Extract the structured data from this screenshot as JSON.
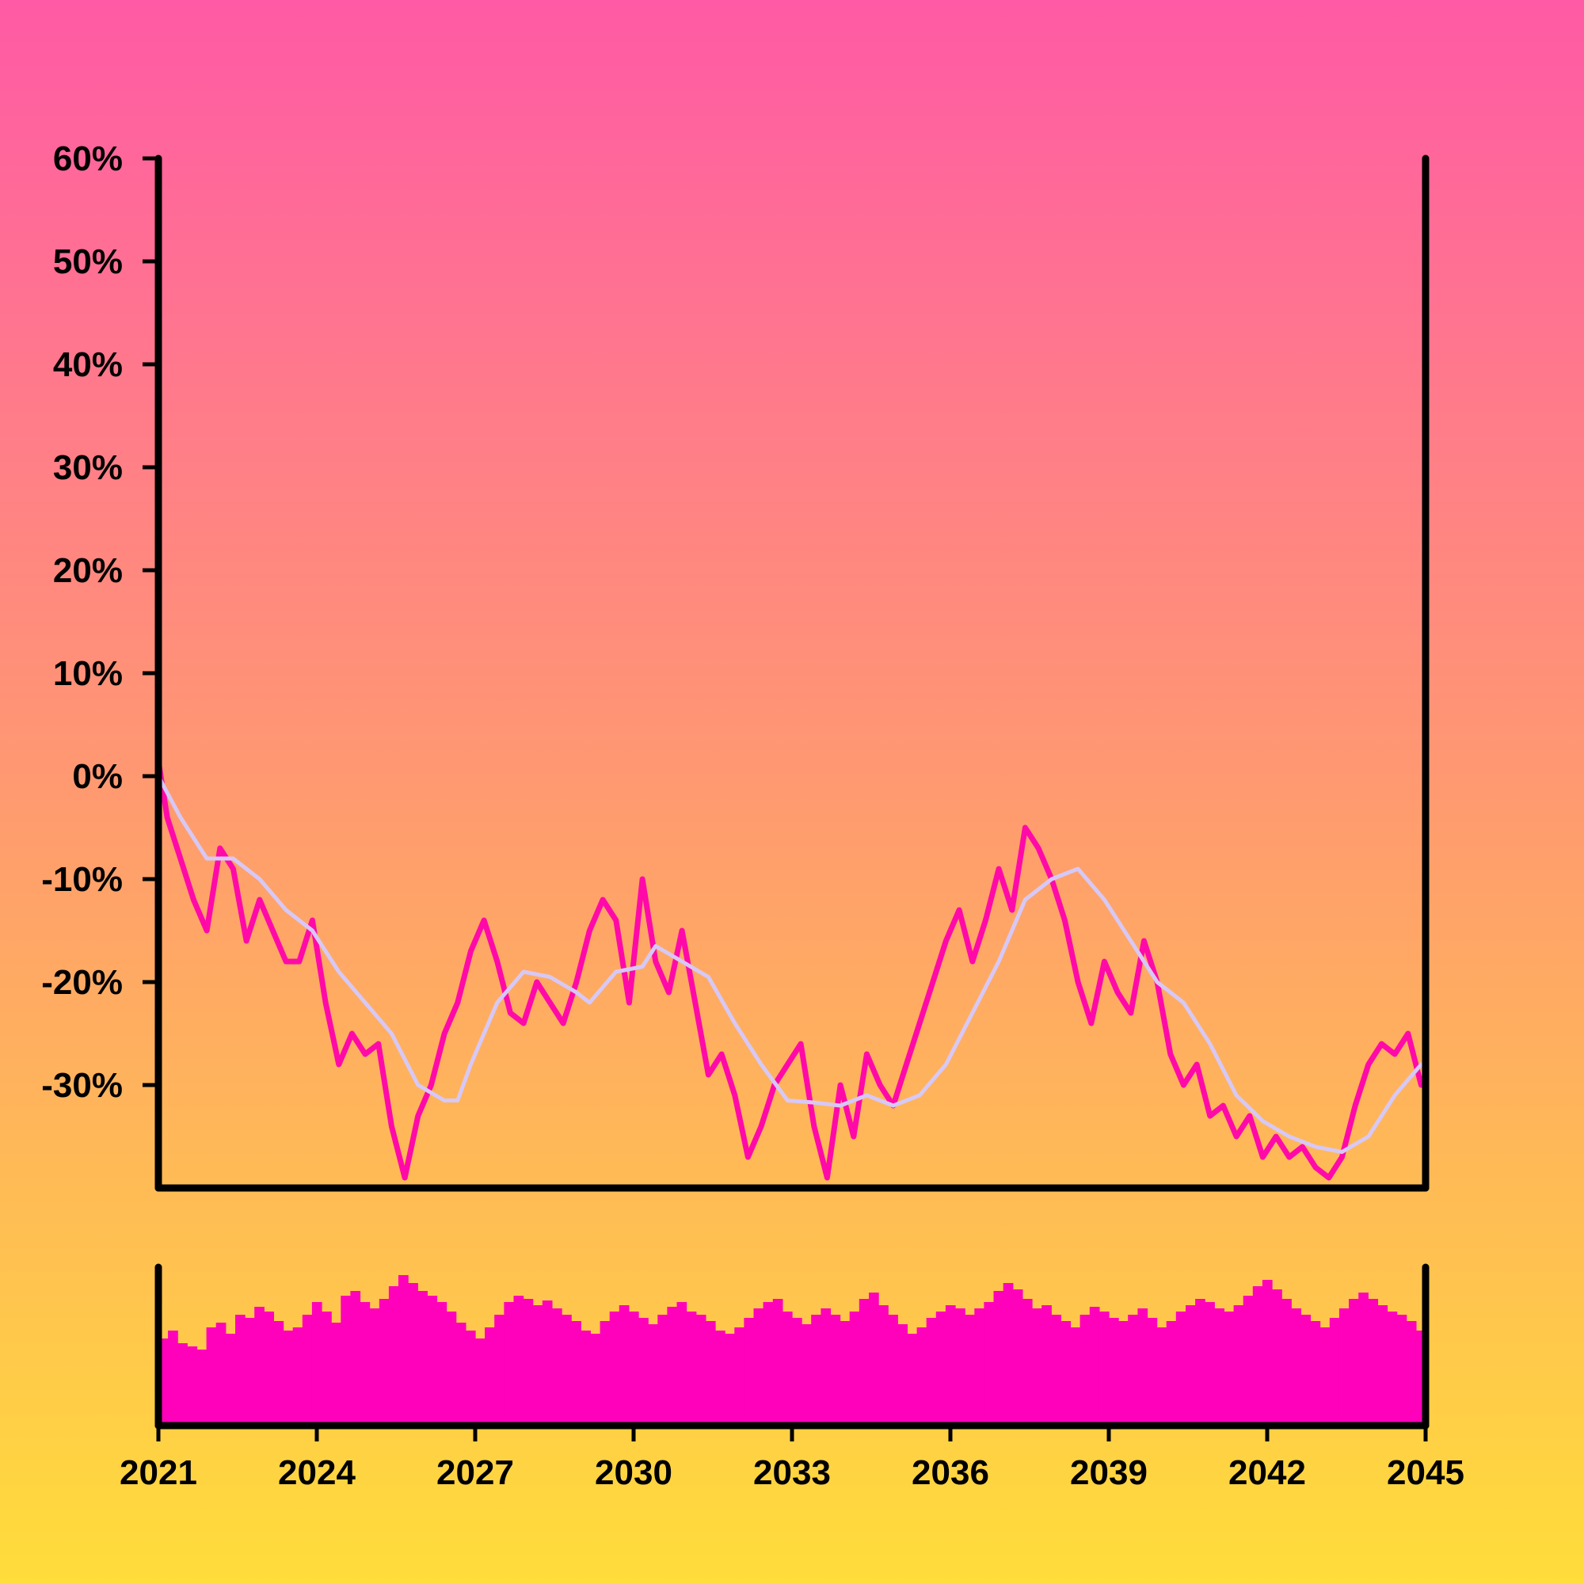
{
  "colors": {
    "background_top": "#ff5aa5",
    "background_bottom": "#ffdd3a",
    "price_line": "#ff0aa8",
    "moving_average": "#d7c8f5",
    "volume_bars": "#ff00bb",
    "axes": "#000000"
  },
  "chart_data": [
    {
      "type": "line",
      "title": "",
      "xlabel": "",
      "ylabel": "",
      "ylim": [
        -40,
        60
      ],
      "xlim": [
        "2021-01",
        "2045-01"
      ],
      "y_tick_labels": [
        "60%",
        "50%",
        "40%",
        "30%",
        "20%",
        "10%",
        "0%",
        "-10%",
        "-20%",
        "-30%"
      ],
      "y_ticks": [
        60,
        50,
        40,
        30,
        20,
        10,
        0,
        -10,
        -20,
        -30
      ],
      "grid": false,
      "series": [
        {
          "role": "price",
          "points": [
            [
              "2021-01",
              1.5
            ],
            [
              "2021-03",
              -4
            ],
            [
              "2021-06",
              -8
            ],
            [
              "2021-09",
              -12
            ],
            [
              "2021-12",
              -15
            ],
            [
              "2022-03",
              -7
            ],
            [
              "2022-06",
              -9
            ],
            [
              "2022-09",
              -16
            ],
            [
              "2022-12",
              -12
            ],
            [
              "2023-03",
              -15
            ],
            [
              "2023-06",
              -18
            ],
            [
              "2023-09",
              -18
            ],
            [
              "2023-12",
              -14
            ],
            [
              "2024-03",
              -22
            ],
            [
              "2024-06",
              -28
            ],
            [
              "2024-09",
              -25
            ],
            [
              "2024-12",
              -27
            ],
            [
              "2025-03",
              -26
            ],
            [
              "2025-06",
              -34
            ],
            [
              "2025-09",
              -39
            ],
            [
              "2025-12",
              -33
            ],
            [
              "2026-03",
              -30
            ],
            [
              "2026-06",
              -25
            ],
            [
              "2026-09",
              -22
            ],
            [
              "2026-12",
              -17
            ],
            [
              "2027-03",
              -14
            ],
            [
              "2027-06",
              -18
            ],
            [
              "2027-09",
              -23
            ],
            [
              "2027-12",
              -24
            ],
            [
              "2028-03",
              -20
            ],
            [
              "2028-06",
              -22
            ],
            [
              "2028-09",
              -24
            ],
            [
              "2028-12",
              -20
            ],
            [
              "2029-03",
              -15
            ],
            [
              "2029-06",
              -12
            ],
            [
              "2029-09",
              -14
            ],
            [
              "2029-12",
              -22
            ],
            [
              "2030-03",
              -10
            ],
            [
              "2030-06",
              -18
            ],
            [
              "2030-09",
              -21
            ],
            [
              "2030-12",
              -15
            ],
            [
              "2031-03",
              -22
            ],
            [
              "2031-06",
              -29
            ],
            [
              "2031-09",
              -27
            ],
            [
              "2031-12",
              -31
            ],
            [
              "2032-03",
              -37
            ],
            [
              "2032-06",
              -34
            ],
            [
              "2032-09",
              -30
            ],
            [
              "2032-12",
              -28
            ],
            [
              "2033-03",
              -26
            ],
            [
              "2033-06",
              -34
            ],
            [
              "2033-09",
              -39
            ],
            [
              "2033-12",
              -30
            ],
            [
              "2034-03",
              -35
            ],
            [
              "2034-06",
              -27
            ],
            [
              "2034-09",
              -30
            ],
            [
              "2034-12",
              -32
            ],
            [
              "2035-03",
              -28
            ],
            [
              "2035-06",
              -24
            ],
            [
              "2035-09",
              -20
            ],
            [
              "2035-12",
              -16
            ],
            [
              "2036-03",
              -13
            ],
            [
              "2036-06",
              -18
            ],
            [
              "2036-09",
              -14
            ],
            [
              "2036-12",
              -9
            ],
            [
              "2037-03",
              -13
            ],
            [
              "2037-06",
              -5
            ],
            [
              "2037-09",
              -7
            ],
            [
              "2037-12",
              -10
            ],
            [
              "2038-03",
              -14
            ],
            [
              "2038-06",
              -20
            ],
            [
              "2038-09",
              -24
            ],
            [
              "2038-12",
              -18
            ],
            [
              "2039-03",
              -21
            ],
            [
              "2039-06",
              -23
            ],
            [
              "2039-09",
              -16
            ],
            [
              "2039-12",
              -20
            ],
            [
              "2040-03",
              -27
            ],
            [
              "2040-06",
              -30
            ],
            [
              "2040-09",
              -28
            ],
            [
              "2040-12",
              -33
            ],
            [
              "2041-03",
              -32
            ],
            [
              "2041-06",
              -35
            ],
            [
              "2041-09",
              -33
            ],
            [
              "2041-12",
              -37
            ],
            [
              "2042-03",
              -35
            ],
            [
              "2042-06",
              -37
            ],
            [
              "2042-09",
              -36
            ],
            [
              "2042-12",
              -38
            ],
            [
              "2043-03",
              -39
            ],
            [
              "2043-06",
              -37
            ],
            [
              "2043-09",
              -32
            ],
            [
              "2043-12",
              -28
            ],
            [
              "2044-03",
              -26
            ],
            [
              "2044-06",
              -27
            ],
            [
              "2044-09",
              -25
            ],
            [
              "2044-12",
              -30
            ]
          ]
        },
        {
          "role": "moving-average",
          "points": [
            [
              "2021-01",
              0
            ],
            [
              "2021-06",
              -4
            ],
            [
              "2021-12",
              -8
            ],
            [
              "2022-06",
              -8
            ],
            [
              "2022-12",
              -10
            ],
            [
              "2023-06",
              -13
            ],
            [
              "2023-12",
              -15
            ],
            [
              "2024-06",
              -19
            ],
            [
              "2024-12",
              -22
            ],
            [
              "2025-06",
              -25
            ],
            [
              "2025-12",
              -30
            ],
            [
              "2026-06",
              -31.5
            ],
            [
              "2026-09",
              -31.5
            ],
            [
              "2026-12",
              -28
            ],
            [
              "2027-06",
              -22
            ],
            [
              "2027-12",
              -19
            ],
            [
              "2028-06",
              -19.5
            ],
            [
              "2028-12",
              -21
            ],
            [
              "2029-03",
              -22
            ],
            [
              "2029-09",
              -19
            ],
            [
              "2030-03",
              -18.5
            ],
            [
              "2030-06",
              -16.5
            ],
            [
              "2030-12",
              -18
            ],
            [
              "2031-06",
              -19.5
            ],
            [
              "2031-12",
              -24
            ],
            [
              "2032-06",
              -28
            ],
            [
              "2032-12",
              -31.5
            ],
            [
              "2033-06",
              -31.7
            ],
            [
              "2033-12",
              -32
            ],
            [
              "2034-06",
              -31
            ],
            [
              "2034-12",
              -32
            ],
            [
              "2035-06",
              -31
            ],
            [
              "2035-12",
              -28
            ],
            [
              "2036-06",
              -23
            ],
            [
              "2036-12",
              -18
            ],
            [
              "2037-06",
              -12
            ],
            [
              "2037-12",
              -10
            ],
            [
              "2038-06",
              -9
            ],
            [
              "2038-12",
              -12
            ],
            [
              "2039-06",
              -16
            ],
            [
              "2039-12",
              -20
            ],
            [
              "2040-06",
              -22
            ],
            [
              "2040-12",
              -26
            ],
            [
              "2041-06",
              -31
            ],
            [
              "2041-12",
              -33.5
            ],
            [
              "2042-06",
              -35
            ],
            [
              "2042-12",
              -36
            ],
            [
              "2043-06",
              -36.5
            ],
            [
              "2043-12",
              -35
            ],
            [
              "2044-06",
              -31
            ],
            [
              "2044-12",
              -28
            ]
          ]
        }
      ]
    },
    {
      "type": "bar",
      "role": "volume",
      "xlim": [
        "2021-01",
        "2045-01"
      ],
      "x_tick_labels": [
        "2021",
        "2024",
        "2027",
        "2030",
        "2033",
        "2036",
        "2039",
        "2042",
        "2045"
      ],
      "y_axis_labels": false,
      "ylim": [
        0,
        1
      ],
      "values": [
        0.55,
        0.6,
        0.52,
        0.5,
        0.48,
        0.62,
        0.65,
        0.58,
        0.7,
        0.68,
        0.75,
        0.72,
        0.66,
        0.6,
        0.62,
        0.7,
        0.78,
        0.72,
        0.65,
        0.82,
        0.85,
        0.78,
        0.74,
        0.8,
        0.88,
        0.95,
        0.9,
        0.85,
        0.82,
        0.78,
        0.72,
        0.65,
        0.6,
        0.55,
        0.62,
        0.7,
        0.78,
        0.82,
        0.8,
        0.76,
        0.79,
        0.74,
        0.7,
        0.66,
        0.6,
        0.58,
        0.66,
        0.72,
        0.76,
        0.72,
        0.68,
        0.64,
        0.7,
        0.75,
        0.78,
        0.72,
        0.7,
        0.66,
        0.6,
        0.58,
        0.62,
        0.68,
        0.74,
        0.78,
        0.8,
        0.72,
        0.68,
        0.64,
        0.7,
        0.74,
        0.7,
        0.66,
        0.72,
        0.8,
        0.84,
        0.76,
        0.7,
        0.64,
        0.58,
        0.62,
        0.68,
        0.72,
        0.76,
        0.74,
        0.7,
        0.74,
        0.78,
        0.85,
        0.9,
        0.86,
        0.8,
        0.74,
        0.76,
        0.7,
        0.66,
        0.62,
        0.7,
        0.75,
        0.72,
        0.68,
        0.66,
        0.7,
        0.74,
        0.68,
        0.62,
        0.66,
        0.72,
        0.76,
        0.8,
        0.78,
        0.74,
        0.72,
        0.76,
        0.82,
        0.88,
        0.92,
        0.86,
        0.8,
        0.74,
        0.7,
        0.66,
        0.62,
        0.68,
        0.74,
        0.8,
        0.84,
        0.8,
        0.76,
        0.72,
        0.7,
        0.66,
        0.6
      ]
    }
  ]
}
